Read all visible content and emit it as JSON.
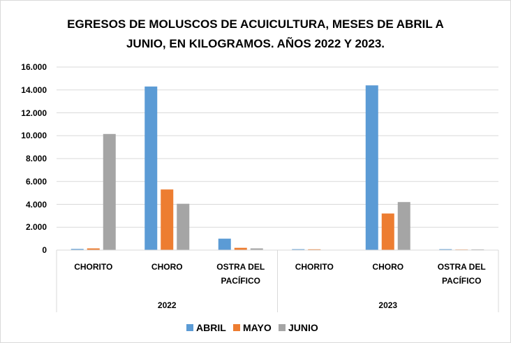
{
  "chart_data": {
    "type": "bar",
    "title": "EGRESOS DE MOLUSCOS DE ACUICULTURA, MESES DE ABRIL A JUNIO, EN KILOGRAMOS. AÑOS 2022 Y 2023.",
    "groups": [
      {
        "name": "2022",
        "categories": [
          "CHORITO",
          "CHORO",
          "OSTRA DEL PACÍFICO"
        ]
      },
      {
        "name": "2023",
        "categories": [
          "CHORITO",
          "CHORO",
          "OSTRA DEL PACÍFICO"
        ]
      }
    ],
    "series": [
      {
        "name": "ABRIL",
        "color": "#5b9bd5",
        "values": [
          100,
          14300,
          1000,
          80,
          14400,
          80
        ]
      },
      {
        "name": "MAYO",
        "color": "#ed7d31",
        "values": [
          150,
          5300,
          200,
          70,
          3200,
          50
        ]
      },
      {
        "name": "JUNIO",
        "color": "#a5a5a5",
        "values": [
          10150,
          4050,
          150,
          0,
          4200,
          60
        ]
      }
    ],
    "ylim": [
      0,
      16000
    ],
    "yticks": [
      0,
      {
        "value": 2000,
        "label": "2.000"
      },
      {
        "value": 4000,
        "label": "4.000"
      },
      {
        "value": 6000,
        "label": "6.000"
      },
      {
        "value": 8000,
        "label": "8.000"
      },
      {
        "value": 10000,
        "label": "10.000"
      },
      {
        "value": 12000,
        "label": "12.000"
      },
      {
        "value": 14000,
        "label": "14.000"
      },
      {
        "value": 16000,
        "label": "16.000"
      }
    ],
    "grid": true,
    "legend": "bottom"
  }
}
